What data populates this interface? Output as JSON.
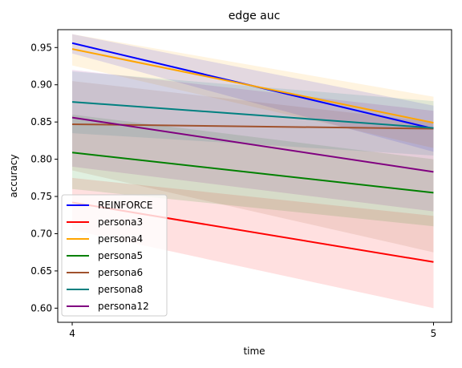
{
  "chart_data": {
    "type": "line",
    "title": "edge auc",
    "xlabel": "time",
    "ylabel": "accuracy",
    "x": [
      4,
      5
    ],
    "xticks": [
      4,
      5
    ],
    "xlim": [
      3.96,
      5.05
    ],
    "ylim": [
      0.581,
      0.974
    ],
    "yticks": [
      0.6,
      0.65,
      0.7,
      0.75,
      0.8,
      0.85,
      0.9,
      0.95
    ],
    "grid": false,
    "legend_position": "lower-left",
    "series": [
      {
        "name": "REINFORCE",
        "color": "#0000ff",
        "values": [
          0.956,
          0.841
        ],
        "lower": [
          0.942,
          0.81
        ],
        "upper": [
          0.968,
          0.872
        ]
      },
      {
        "name": "persona3",
        "color": "#ff0000",
        "values": [
          0.742,
          0.662
        ],
        "lower": [
          0.705,
          0.6
        ],
        "upper": [
          0.775,
          0.724
        ]
      },
      {
        "name": "persona4",
        "color": "#ffa500",
        "values": [
          0.948,
          0.849
        ],
        "lower": [
          0.926,
          0.815
        ],
        "upper": [
          0.968,
          0.884
        ]
      },
      {
        "name": "persona5",
        "color": "#008000",
        "values": [
          0.809,
          0.755
        ],
        "lower": [
          0.76,
          0.71
        ],
        "upper": [
          0.86,
          0.8
        ]
      },
      {
        "name": "persona6",
        "color": "#a0522d",
        "values": [
          0.847,
          0.841
        ],
        "lower": [
          0.785,
          0.675
        ],
        "upper": [
          0.905,
          0.85
        ]
      },
      {
        "name": "persona8",
        "color": "#008080",
        "values": [
          0.877,
          0.842
        ],
        "lower": [
          0.835,
          0.805
        ],
        "upper": [
          0.918,
          0.878
        ]
      },
      {
        "name": "persona12",
        "color": "#800080",
        "values": [
          0.856,
          0.783
        ],
        "lower": [
          0.79,
          0.73
        ],
        "upper": [
          0.92,
          0.865
        ]
      }
    ]
  }
}
